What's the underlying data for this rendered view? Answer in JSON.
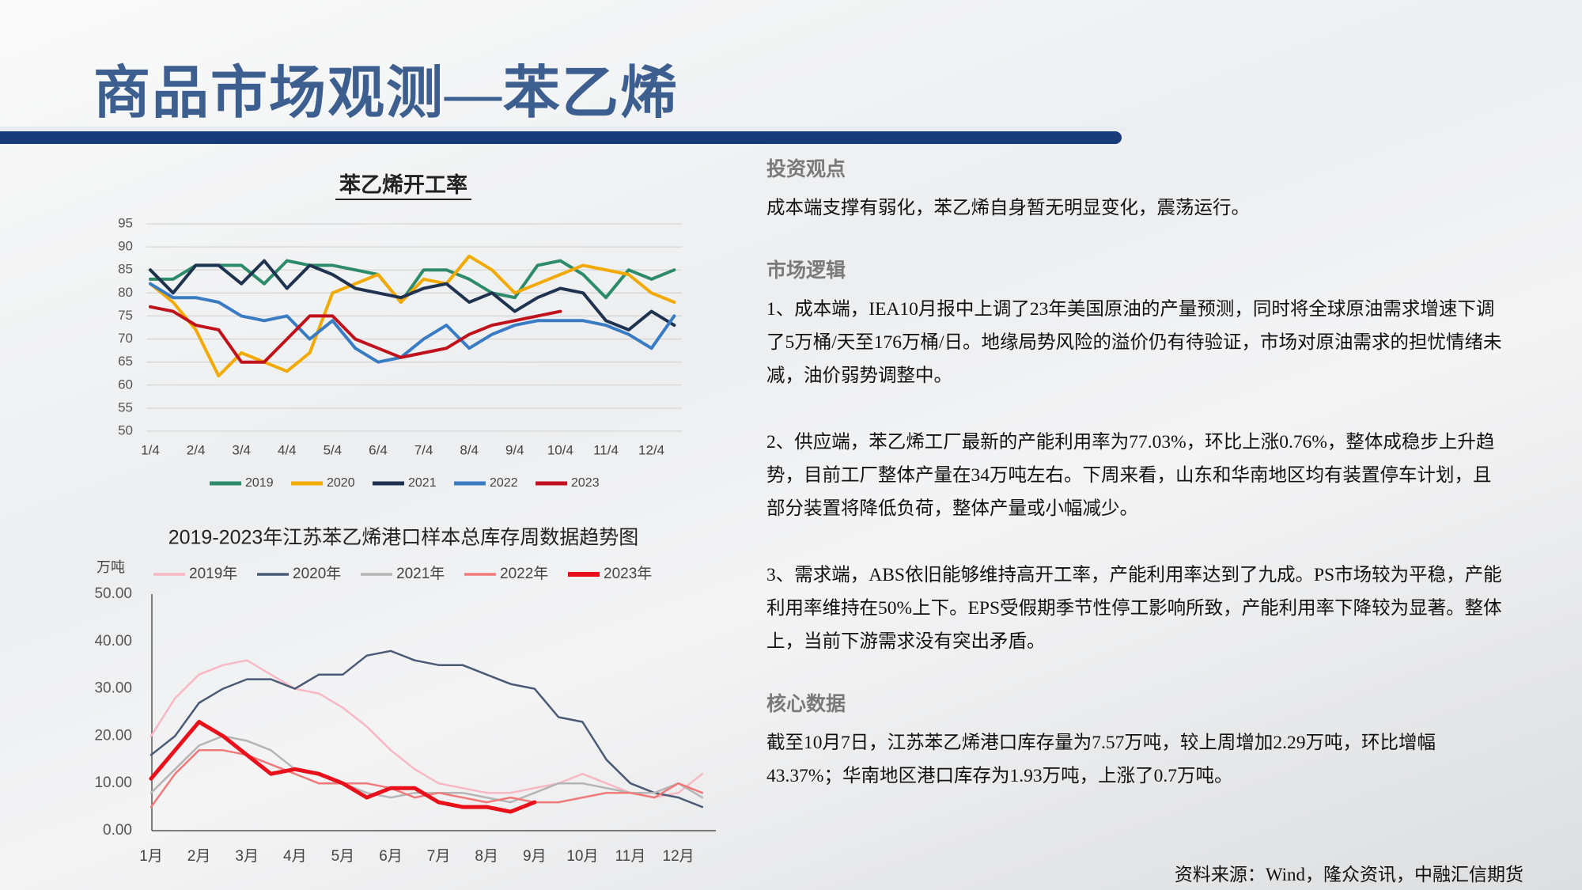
{
  "title": "商品市场观测—苯乙烯",
  "chart_data": [
    {
      "type": "line",
      "title": "苯乙烯开工率",
      "categories": [
        "1/4",
        null,
        "2/4",
        null,
        "3/4",
        null,
        "4/4",
        null,
        "5/4",
        null,
        "6/4",
        null,
        "7/4",
        null,
        "8/4",
        null,
        "9/4",
        null,
        "10/4",
        null,
        "11/4",
        null,
        "12/4",
        null
      ],
      "ylim": [
        50,
        95
      ],
      "yticks": [
        50,
        55,
        60,
        65,
        70,
        75,
        80,
        85,
        90,
        95
      ],
      "grid": true,
      "legend": "bottom",
      "series": [
        {
          "name": "2019",
          "color": "#2e8b6a",
          "values": [
            83,
            83,
            86,
            86,
            86,
            82,
            87,
            86,
            86,
            85,
            84,
            78,
            85,
            85,
            83,
            80,
            79,
            86,
            87,
            84,
            79,
            85,
            83,
            85
          ]
        },
        {
          "name": "2020",
          "color": "#f2a900",
          "values": [
            82,
            78,
            72,
            62,
            67,
            65,
            63,
            67,
            80,
            82,
            84,
            78,
            83,
            82,
            88,
            85,
            80,
            82,
            84,
            86,
            85,
            84,
            80,
            78
          ]
        },
        {
          "name": "2021",
          "color": "#1f3350",
          "values": [
            85,
            80,
            86,
            86,
            82,
            87,
            81,
            86,
            84,
            81,
            80,
            79,
            81,
            82,
            78,
            80,
            76,
            79,
            81,
            80,
            74,
            72,
            76,
            73
          ]
        },
        {
          "name": "2022",
          "color": "#3a7cc4",
          "values": [
            82,
            79,
            79,
            78,
            75,
            74,
            75,
            70,
            74,
            68,
            65,
            66,
            70,
            73,
            68,
            71,
            73,
            74,
            74,
            74,
            73,
            71,
            68,
            75
          ]
        },
        {
          "name": "2023",
          "color": "#c0121c",
          "values": [
            77,
            76,
            73,
            72,
            65,
            65,
            70,
            75,
            75,
            70,
            68,
            66,
            67,
            68,
            71,
            73,
            74,
            75,
            76,
            null,
            null,
            null,
            null,
            null
          ]
        }
      ]
    },
    {
      "type": "line",
      "title": "2019-2023年江苏苯乙烯港口样本总库存周数据趋势图",
      "y_label": "万吨",
      "categories": [
        "1月",
        null,
        "2月",
        null,
        "3月",
        null,
        "4月",
        null,
        "5月",
        null,
        "6月",
        null,
        "7月",
        null,
        "8月",
        null,
        "9月",
        null,
        "10月",
        null,
        "11月",
        null,
        "12月",
        null
      ],
      "ylim": [
        0,
        50
      ],
      "yticks": [
        {
          "value": 0,
          "label": "0.00"
        },
        {
          "value": 10,
          "label": "10.00"
        },
        {
          "value": 20,
          "label": "20.00"
        },
        {
          "value": 30,
          "label": "30.00"
        },
        {
          "value": 40,
          "label": "40.00"
        },
        {
          "value": 50,
          "label": "50.00"
        }
      ],
      "grid": false,
      "legend": "top",
      "series": [
        {
          "name": "2019年",
          "color": "#f7b8c4",
          "values": [
            20,
            28,
            33,
            35,
            36,
            33,
            30,
            29,
            26,
            22,
            17,
            13,
            10,
            9,
            8,
            8,
            9,
            10,
            12,
            10,
            8,
            7,
            8,
            12
          ]
        },
        {
          "name": "2020年",
          "color": "#4a5a75",
          "values": [
            16,
            20,
            27,
            30,
            32,
            32,
            30,
            33,
            33,
            37,
            38,
            36,
            35,
            35,
            33,
            31,
            30,
            24,
            23,
            15,
            10,
            8,
            7,
            5
          ]
        },
        {
          "name": "2021年",
          "color": "#b5b5b5",
          "values": [
            8,
            13,
            18,
            20,
            19,
            17,
            13,
            12,
            10,
            8,
            7,
            8,
            8,
            8,
            7,
            6,
            8,
            10,
            10,
            9,
            8,
            8,
            10,
            7
          ]
        },
        {
          "name": "2022年",
          "color": "#f07a7a",
          "values": [
            5,
            12,
            17,
            17,
            16,
            14,
            12,
            10,
            10,
            10,
            9,
            7,
            8,
            7,
            6,
            7,
            6,
            6,
            7,
            8,
            8,
            7,
            10,
            8
          ]
        },
        {
          "name": "2023年",
          "color": "#e8101a",
          "values": [
            11,
            17,
            23,
            20,
            16,
            12,
            13,
            12,
            10,
            7,
            9,
            9,
            6,
            5,
            5,
            4,
            6,
            null,
            null,
            null,
            null,
            null,
            null,
            null
          ]
        }
      ]
    }
  ],
  "sections": [
    {
      "heading": "投资观点",
      "paragraphs": [
        "成本端支撑有弱化，苯乙烯自身暂无明显变化，震荡运行。"
      ]
    },
    {
      "heading": "市场逻辑",
      "paragraphs": [
        "1、成本端，IEA10月报中上调了23年美国原油的产量预测，同时将全球原油需求增速下调了5万桶/天至176万桶/日。地缘局势风险的溢价仍有待验证，市场对原油需求的担忧情绪未减，油价弱势调整中。",
        "2、供应端，苯乙烯工厂最新的产能利用率为77.03%，环比上涨0.76%，整体成稳步上升趋势，目前工厂整体产量在34万吨左右。下周来看，山东和华南地区均有装置停车计划，且部分装置将降低负荷，整体产量或小幅减少。",
        "3、需求端，ABS依旧能够维持高开工率，产能利用率达到了九成。PS市场较为平稳，产能利用率维持在50%上下。EPS受假期季节性停工影响所致，产能利用率下降较为显著。整体上，当前下游需求没有突出矛盾。"
      ]
    },
    {
      "heading": "核心数据",
      "paragraphs": [
        "截至10月7日，江苏苯乙烯港口库存量为7.57万吨，较上周增加2.29万吨，环比增幅43.37%；华南地区港口库存为1.93万吨，上涨了0.7万吨。"
      ]
    }
  ],
  "source": "资料来源：Wind，隆众资讯，中融汇信期货"
}
